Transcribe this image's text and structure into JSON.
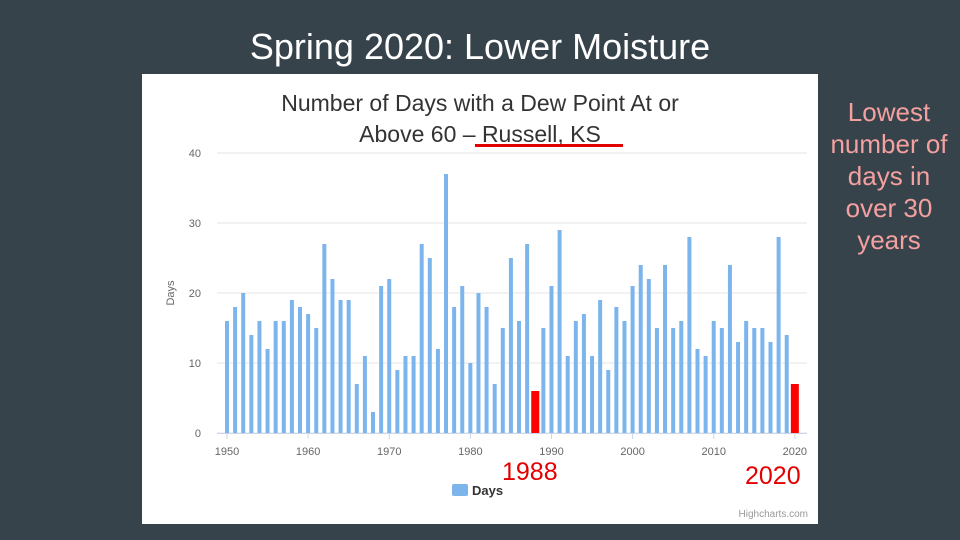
{
  "slide": {
    "title": "Spring 2020: Lower Moisture",
    "side_note": "Lowest number of days in over 30 years"
  },
  "chart_data": {
    "type": "bar",
    "title_line1": "Number of Days with a Dew Point At or",
    "title_line2_prefix": "Above 60 – ",
    "title_line2_location": "Russell, KS",
    "ylabel": "Days",
    "xlabel": "",
    "ylim": [
      0,
      40
    ],
    "yticks": [
      0,
      10,
      20,
      30,
      40
    ],
    "xticks": [
      1950,
      1960,
      1970,
      1980,
      1990,
      2000,
      2010,
      2020
    ],
    "grid": true,
    "legend": "bottom-center",
    "series": [
      {
        "name": "Days",
        "color": "#7cb5ec",
        "x": [
          1950,
          1951,
          1952,
          1953,
          1954,
          1955,
          1956,
          1957,
          1958,
          1959,
          1960,
          1961,
          1962,
          1963,
          1964,
          1965,
          1966,
          1967,
          1968,
          1969,
          1970,
          1971,
          1972,
          1973,
          1974,
          1975,
          1976,
          1977,
          1978,
          1979,
          1980,
          1981,
          1982,
          1983,
          1984,
          1985,
          1986,
          1987,
          1988,
          1989,
          1990,
          1991,
          1992,
          1993,
          1994,
          1995,
          1996,
          1997,
          1998,
          1999,
          2000,
          2001,
          2002,
          2003,
          2004,
          2005,
          2006,
          2007,
          2008,
          2009,
          2010,
          2011,
          2012,
          2013,
          2014,
          2015,
          2016,
          2017,
          2018,
          2019,
          2020
        ],
        "values": [
          16,
          18,
          20,
          14,
          16,
          12,
          16,
          16,
          19,
          18,
          17,
          15,
          27,
          22,
          19,
          19,
          7,
          11,
          3,
          21,
          22,
          9,
          11,
          11,
          27,
          25,
          12,
          37,
          18,
          21,
          10,
          20,
          18,
          7,
          15,
          25,
          16,
          27,
          6,
          15,
          21,
          29,
          11,
          16,
          17,
          11,
          19,
          9,
          18,
          16,
          21,
          24,
          22,
          15,
          24,
          15,
          16,
          28,
          12,
          11,
          16,
          15,
          24,
          13,
          16,
          15,
          15,
          13,
          28,
          14,
          7
        ]
      }
    ],
    "highlight": {
      "years": [
        1988,
        2020
      ],
      "color": "#ff0000"
    },
    "annotations": [
      "1988",
      "2020"
    ],
    "credit": "Highcharts.com"
  }
}
